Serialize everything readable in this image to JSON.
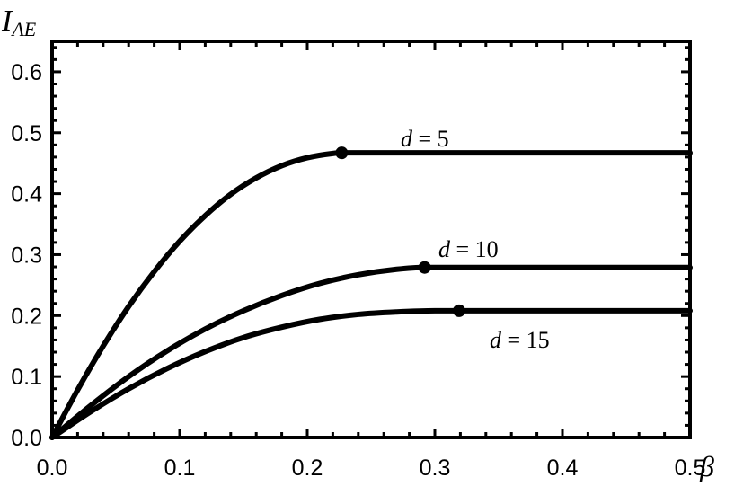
{
  "chart_data": {
    "type": "line",
    "xlabel": "β",
    "ylabel": {
      "base": "I",
      "subscript": "AE"
    },
    "xlim": [
      0.0,
      0.5
    ],
    "ylim": [
      0.0,
      0.65
    ],
    "x_ticks": [
      0.0,
      0.1,
      0.2,
      0.3,
      0.4,
      0.5
    ],
    "x_tick_labels": [
      "0.0",
      "0.1",
      "0.2",
      "0.3",
      "0.4",
      "0.5"
    ],
    "y_ticks": [
      0.0,
      0.1,
      0.2,
      0.3,
      0.4,
      0.5,
      0.6
    ],
    "y_tick_labels": [
      "0.0",
      "0.1",
      "0.2",
      "0.3",
      "0.4",
      "0.5",
      "0.6"
    ],
    "grid": false,
    "series": [
      {
        "label_var": "d",
        "label_value": "5",
        "color": "#000000",
        "x": [
          0.0,
          0.02,
          0.04,
          0.06,
          0.08,
          0.1,
          0.12,
          0.14,
          0.16,
          0.18,
          0.2,
          0.22,
          0.227,
          0.3,
          0.4,
          0.5
        ],
        "y": [
          0.0,
          0.078,
          0.15,
          0.215,
          0.272,
          0.322,
          0.364,
          0.399,
          0.426,
          0.446,
          0.459,
          0.466,
          0.467,
          0.467,
          0.467,
          0.467
        ],
        "marker": {
          "x": 0.227,
          "y": 0.467
        }
      },
      {
        "label_var": "d",
        "label_value": "10",
        "color": "#000000",
        "x": [
          0.0,
          0.03,
          0.06,
          0.09,
          0.12,
          0.15,
          0.18,
          0.21,
          0.24,
          0.27,
          0.292,
          0.35,
          0.4,
          0.5
        ],
        "y": [
          0.0,
          0.052,
          0.1,
          0.142,
          0.178,
          0.208,
          0.233,
          0.253,
          0.267,
          0.276,
          0.279,
          0.279,
          0.279,
          0.279
        ],
        "marker": {
          "x": 0.292,
          "y": 0.279
        }
      },
      {
        "label_var": "d",
        "label_value": "15",
        "color": "#000000",
        "x": [
          0.0,
          0.03,
          0.06,
          0.09,
          0.12,
          0.15,
          0.18,
          0.21,
          0.24,
          0.27,
          0.3,
          0.319,
          0.4,
          0.5
        ],
        "y": [
          0.0,
          0.042,
          0.08,
          0.113,
          0.141,
          0.164,
          0.181,
          0.194,
          0.202,
          0.206,
          0.208,
          0.208,
          0.208,
          0.208
        ],
        "marker": {
          "x": 0.319,
          "y": 0.208
        }
      }
    ],
    "annotations": [
      {
        "var": "d",
        "value": "5"
      },
      {
        "var": "d",
        "value": "10"
      },
      {
        "var": "d",
        "value": "15"
      }
    ]
  }
}
